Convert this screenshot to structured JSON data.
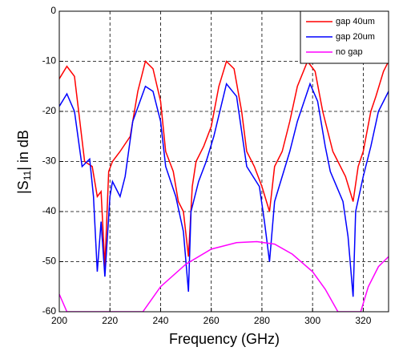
{
  "chart_data": {
    "type": "line",
    "x_label": "Frequency (GHz)",
    "y_label": {
      "prefix": "|S",
      "subscript": "11",
      "suffix": "| in dB"
    },
    "xlim": [
      200,
      330
    ],
    "ylim": [
      -60,
      0
    ],
    "xticks": [
      200,
      220,
      240,
      260,
      280,
      300,
      320
    ],
    "yticks": [
      -60,
      -50,
      -40,
      -30,
      -20,
      -10,
      0
    ],
    "grid": true,
    "legend": "upper right",
    "series": [
      {
        "name": "gap 40um",
        "color": "#ff0000",
        "x": [
          200,
          203,
          206,
          210,
          213,
          215,
          216.5,
          218,
          219.5,
          221,
          224,
          228,
          231,
          234,
          237,
          240,
          242,
          245,
          247,
          249,
          251,
          252.5,
          254,
          257,
          260,
          263,
          266,
          269,
          272,
          274,
          277,
          280,
          283,
          285,
          288,
          291,
          294,
          298,
          301,
          304,
          308,
          311,
          313,
          316,
          318,
          320,
          323,
          325,
          328,
          330
        ],
        "values": [
          -13.5,
          -11,
          -13,
          -30,
          -31,
          -37,
          -36,
          -51,
          -32,
          -30,
          -28,
          -25,
          -16,
          -10,
          -11.5,
          -18,
          -28,
          -32,
          -38,
          -40,
          -49,
          -35,
          -30,
          -27,
          -23,
          -15,
          -10,
          -11.5,
          -20,
          -28,
          -31,
          -35,
          -40,
          -31,
          -28,
          -22,
          -15,
          -10,
          -12,
          -20,
          -28,
          -31,
          -33,
          -38,
          -31,
          -28,
          -20,
          -17,
          -12,
          -10
        ]
      },
      {
        "name": "gap 20um",
        "color": "#0000ff",
        "x": [
          200,
          203,
          206,
          209,
          212,
          213.5,
          215,
          216.5,
          218,
          220,
          221,
          224,
          226,
          229,
          234,
          237,
          240,
          242,
          246,
          249,
          251,
          252,
          255,
          258,
          261,
          266,
          270,
          272,
          274,
          279,
          281,
          283,
          285,
          288,
          291,
          294,
          299,
          302,
          305,
          307,
          312,
          314,
          316,
          317,
          320,
          323,
          326,
          328,
          330
        ],
        "values": [
          -19,
          -16.5,
          -20,
          -31,
          -29.5,
          -37,
          -52,
          -42,
          -53,
          -37,
          -34,
          -37,
          -33,
          -22,
          -15,
          -16,
          -22,
          -31,
          -37,
          -44,
          -56,
          -40,
          -34,
          -30,
          -25,
          -14.5,
          -17,
          -24,
          -31,
          -35,
          -42,
          -50,
          -38,
          -33,
          -28,
          -22,
          -14.5,
          -18,
          -27,
          -32,
          -38,
          -45,
          -57,
          -40,
          -33,
          -27,
          -20,
          -18,
          -16
        ]
      },
      {
        "name": "no gap",
        "color": "#ff00ff",
        "x": [
          200,
          203,
          233,
          240,
          250,
          260,
          270,
          278,
          285,
          292,
          300,
          305,
          310,
          319,
          322,
          326,
          330
        ],
        "values": [
          -56.5,
          -60,
          -60,
          -55,
          -50.5,
          -47.5,
          -46.2,
          -46,
          -46.5,
          -48.5,
          -52,
          -55.5,
          -60,
          -60,
          -55,
          -51,
          -49
        ]
      }
    ]
  }
}
